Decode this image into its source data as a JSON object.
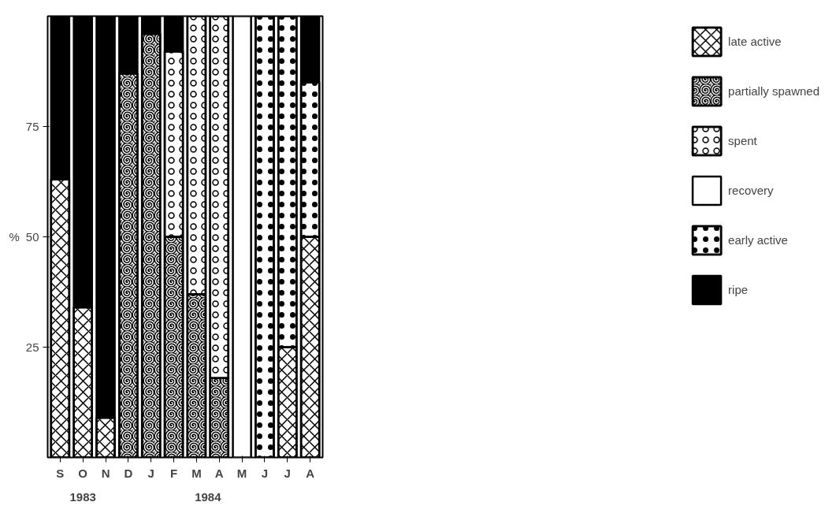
{
  "chart_data": {
    "type": "bar",
    "stacked": true,
    "ylabel": "%",
    "categories": [
      "S",
      "O",
      "N",
      "D",
      "J",
      "F",
      "M",
      "A",
      "M",
      "J",
      "J",
      "A"
    ],
    "series": [
      {
        "name": "late active",
        "color": "#ffffff",
        "values": [
          63,
          34,
          9,
          null,
          null,
          null,
          null,
          null,
          null,
          null,
          25,
          50
        ]
      },
      {
        "name": "partially spawned",
        "color": "#ffffff",
        "values": [
          null,
          null,
          null,
          87,
          96,
          50,
          37,
          18,
          null,
          null,
          null,
          null
        ]
      },
      {
        "name": "spent",
        "color": "#ffffff",
        "values": [
          null,
          null,
          null,
          null,
          null,
          42,
          63,
          82,
          null,
          null,
          null,
          null
        ]
      },
      {
        "name": "recovery",
        "color": "#ffffff",
        "values": [
          null,
          null,
          null,
          null,
          null,
          null,
          null,
          null,
          100,
          null,
          null,
          null
        ]
      },
      {
        "name": "early active",
        "color": "#ffffff",
        "values": [
          null,
          null,
          null,
          null,
          null,
          null,
          null,
          null,
          null,
          100,
          75,
          35
        ]
      },
      {
        "name": "ripe",
        "color": "#000000",
        "values": [
          37,
          66,
          91,
          13,
          4,
          8,
          null,
          null,
          null,
          null,
          null,
          15
        ]
      }
    ],
    "ylim": [
      0,
      100
    ],
    "yticks": [
      25,
      50,
      75
    ],
    "grid": false,
    "legend": "right",
    "annotations": [
      "1983",
      "1984"
    ]
  }
}
